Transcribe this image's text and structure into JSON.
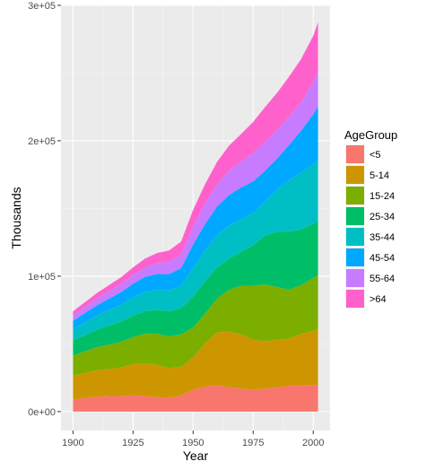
{
  "chart_data": {
    "type": "area",
    "stacked": true,
    "xlabel": "Year",
    "ylabel": "Thousands",
    "xlim": [
      1895,
      2007
    ],
    "ylim": [
      -14000,
      300000
    ],
    "x_ticks": [
      1900,
      1925,
      1950,
      1975,
      2000
    ],
    "y_ticks": [
      0,
      100000,
      200000,
      300000
    ],
    "y_tick_labels": [
      "0e+00",
      "1e+05",
      "2e+05",
      "3e+05"
    ],
    "grid": true,
    "panel_background": "#ebebeb",
    "legend": {
      "title": "AgeGroup",
      "position": "right"
    },
    "x": [
      1900,
      1905,
      1910,
      1915,
      1920,
      1925,
      1930,
      1935,
      1940,
      1945,
      1950,
      1955,
      1960,
      1965,
      1970,
      1975,
      1980,
      1985,
      1990,
      1995,
      2000,
      2002
    ],
    "series": [
      {
        "name": "<5",
        "color": "#F8766D",
        "values": [
          9000,
          10000,
          11000,
          11500,
          11500,
          12000,
          11500,
          10500,
          10000,
          12000,
          16000,
          18500,
          19500,
          18000,
          17000,
          16000,
          17000,
          18000,
          19000,
          19500,
          19500,
          19500
        ]
      },
      {
        "name": "5-14",
        "color": "#CD9600",
        "values": [
          17500,
          18500,
          19500,
          20000,
          21000,
          23000,
          24000,
          24000,
          22000,
          21000,
          24000,
          32000,
          39000,
          41000,
          40000,
          37000,
          35000,
          35000,
          35000,
          38000,
          40000,
          41000
        ]
      },
      {
        "name": "15-24",
        "color": "#7CAE00",
        "values": [
          15000,
          16000,
          17000,
          18000,
          19000,
          20000,
          22000,
          23000,
          23500,
          24000,
          22000,
          22000,
          25000,
          31000,
          36000,
          40000,
          42000,
          39000,
          36000,
          36000,
          39000,
          40000
        ]
      },
      {
        "name": "25-34",
        "color": "#00BE67",
        "values": [
          11000,
          12000,
          13000,
          14000,
          15000,
          16000,
          16500,
          17500,
          18500,
          19500,
          23000,
          24000,
          23000,
          23000,
          25000,
          30000,
          36000,
          41000,
          43000,
          41000,
          40000,
          40000
        ]
      },
      {
        "name": "35-44",
        "color": "#00BFC4",
        "values": [
          8500,
          9500,
          10500,
          11500,
          12500,
          13500,
          14500,
          15000,
          15500,
          16500,
          21000,
          22500,
          24000,
          24500,
          24000,
          23500,
          25000,
          31000,
          38000,
          42000,
          44000,
          45000
        ]
      },
      {
        "name": "45-54",
        "color": "#00A9FF",
        "values": [
          6000,
          6800,
          7600,
          8400,
          9200,
          10000,
          11000,
          11600,
          12000,
          13000,
          17500,
          19500,
          21000,
          22500,
          23500,
          23500,
          23000,
          23000,
          26000,
          31000,
          37000,
          40000
        ]
      },
      {
        "name": "55-64",
        "color": "#C77CFF",
        "values": [
          4000,
          4500,
          5000,
          5500,
          6000,
          6500,
          7000,
          8000,
          9000,
          10000,
          13000,
          15000,
          16500,
          18000,
          19500,
          21000,
          21500,
          21000,
          21000,
          21000,
          24000,
          26000
        ]
      },
      {
        "name": ">64",
        "color": "#FF61CC",
        "values": [
          3000,
          3500,
          4000,
          4500,
          5000,
          5500,
          6500,
          7500,
          8500,
          9500,
          12500,
          14500,
          16500,
          18500,
          20000,
          23000,
          25500,
          27500,
          29500,
          32000,
          34000,
          36000
        ]
      }
    ]
  }
}
